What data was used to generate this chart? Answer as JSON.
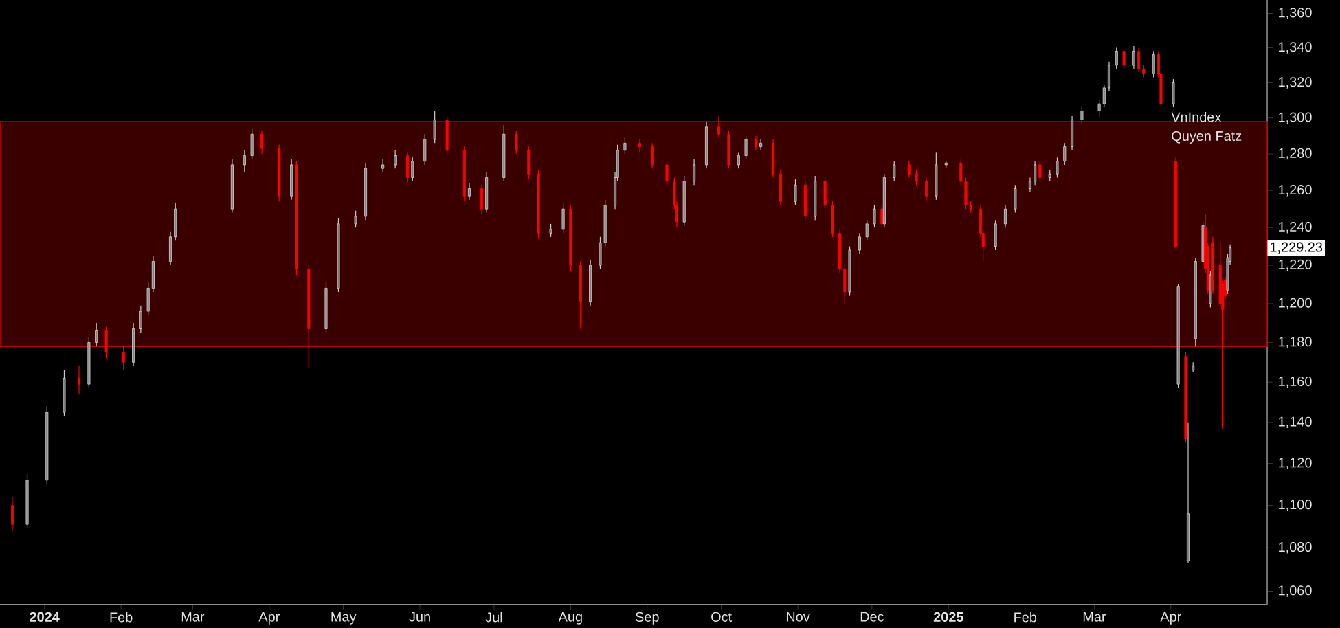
{
  "chart_data": {
    "type": "candlestick",
    "annotations": [
      "VnIndex",
      "Quyen Fatz",
      "1,229.23"
    ],
    "log": "y",
    "xlim": [
      "2023-12-14",
      "2025-05-10"
    ],
    "ylim": [
      1054,
      1368
    ],
    "xticks": [
      {
        "value": "2024-01-01",
        "label": "2024"
      },
      {
        "value": "2024-02-01",
        "label": "Feb"
      },
      {
        "value": "2024-03-01",
        "label": "Mar"
      },
      {
        "value": "2024-04-01",
        "label": "Apr"
      },
      {
        "value": "2024-05-01",
        "label": "May"
      },
      {
        "value": "2024-06-01",
        "label": "Jun"
      },
      {
        "value": "2024-07-01",
        "label": "Jul"
      },
      {
        "value": "2024-08-01",
        "label": "Aug"
      },
      {
        "value": "2024-09-01",
        "label": "Sep"
      },
      {
        "value": "2024-10-01",
        "label": "Oct"
      },
      {
        "value": "2024-11-01",
        "label": "Nov"
      },
      {
        "value": "2024-12-01",
        "label": "Dec"
      },
      {
        "value": "2025-01-01",
        "label": "2025"
      },
      {
        "value": "2025-02-01",
        "label": "Feb"
      },
      {
        "value": "2025-03-01",
        "label": "Mar"
      },
      {
        "value": "2025-04-01",
        "label": "Apr"
      }
    ],
    "yticks": [
      {
        "value": 1060,
        "label": "1,060"
      },
      {
        "value": 1080,
        "label": "1,080"
      },
      {
        "value": 1100,
        "label": "1,100"
      },
      {
        "value": 1120,
        "label": "1,120"
      },
      {
        "value": 1140,
        "label": "1,140"
      },
      {
        "value": 1160,
        "label": "1,160"
      },
      {
        "value": 1180,
        "label": "1,180"
      },
      {
        "value": 1200,
        "label": "1,200"
      },
      {
        "value": 1220,
        "label": "1,220"
      },
      {
        "value": 1240,
        "label": "1,240"
      },
      {
        "value": 1260,
        "label": "1,260"
      },
      {
        "value": 1280,
        "label": "1,280"
      },
      {
        "value": 1300,
        "label": "1,300"
      },
      {
        "value": 1320,
        "label": "1,320"
      },
      {
        "value": 1340,
        "label": "1,340"
      },
      {
        "value": 1360,
        "label": "1,360"
      }
    ],
    "bands": [
      {
        "axis": "y",
        "from": 1178,
        "to": 1298,
        "color": "#3a0000"
      }
    ],
    "x": [
      "2023-12-19",
      "2023-12-25",
      "2024-01-02",
      "2024-01-09",
      "2024-01-15",
      "2024-01-19",
      "2024-01-22",
      "2024-01-26",
      "2024-02-02",
      "2024-02-06",
      "2024-02-09",
      "2024-02-12",
      "2024-02-14",
      "2024-02-21",
      "2024-02-23",
      "2024-03-17",
      "2024-03-22",
      "2024-03-25",
      "2024-03-29",
      "2024-04-05",
      "2024-04-10",
      "2024-04-12",
      "2024-04-17",
      "2024-04-24",
      "2024-04-29",
      "2024-05-06",
      "2024-05-10",
      "2024-05-17",
      "2024-05-22",
      "2024-05-27",
      "2024-05-29",
      "2024-06-03",
      "2024-06-07",
      "2024-06-12",
      "2024-06-19",
      "2024-06-21",
      "2024-06-26",
      "2024-06-28",
      "2024-07-05",
      "2024-07-10",
      "2024-07-15",
      "2024-07-19",
      "2024-07-24",
      "2024-07-29",
      "2024-08-01",
      "2024-08-05",
      "2024-08-09",
      "2024-08-13",
      "2024-08-15",
      "2024-08-19",
      "2024-08-20",
      "2024-08-23",
      "2024-08-29",
      "2024-09-03",
      "2024-09-09",
      "2024-09-12",
      "2024-09-13",
      "2024-09-16",
      "2024-09-20",
      "2024-09-25",
      "2024-09-30",
      "2024-10-04",
      "2024-10-08",
      "2024-10-11",
      "2024-10-15",
      "2024-10-17",
      "2024-10-22",
      "2024-10-25",
      "2024-10-31",
      "2024-11-04",
      "2024-11-08",
      "2024-11-12",
      "2024-11-15",
      "2024-11-18",
      "2024-11-20",
      "2024-11-22",
      "2024-11-26",
      "2024-11-29",
      "2024-12-02",
      "2024-12-05",
      "2024-12-06",
      "2024-12-10",
      "2024-12-16",
      "2024-12-19",
      "2024-12-23",
      "2024-12-27",
      "2024-12-31",
      "2025-01-06",
      "2025-01-08",
      "2025-01-10",
      "2025-01-14",
      "2025-01-15",
      "2025-01-20",
      "2025-01-24",
      "2025-01-28",
      "2025-02-03",
      "2025-02-05",
      "2025-02-07",
      "2025-02-11",
      "2025-02-14",
      "2025-02-17",
      "2025-02-20",
      "2025-02-24",
      "2025-03-03",
      "2025-03-05",
      "2025-03-07",
      "2025-03-10",
      "2025-03-13",
      "2025-03-17",
      "2025-03-19",
      "2025-03-21",
      "2025-03-25",
      "2025-03-27",
      "2025-03-28",
      "2025-04-02",
      "2025-04-03",
      "2025-04-04",
      "2025-04-07",
      "2025-04-08",
      "2025-04-10",
      "2025-04-11",
      "2025-04-14",
      "2025-04-15",
      "2025-04-16",
      "2025-04-17",
      "2025-04-18",
      "2025-04-21",
      "2025-04-22",
      "2025-04-23",
      "2025-04-24",
      "2025-04-25"
    ],
    "ohlc": [
      [
        1100,
        1104,
        1088,
        1091
      ],
      [
        1091,
        1115,
        1089,
        1112
      ],
      [
        1112,
        1148,
        1110,
        1145
      ],
      [
        1145,
        1166,
        1143,
        1162
      ],
      [
        1162,
        1168,
        1154,
        1159
      ],
      [
        1159,
        1183,
        1157,
        1180
      ],
      [
        1180,
        1190,
        1178,
        1186
      ],
      [
        1186,
        1188,
        1172,
        1175
      ],
      [
        1175,
        1178,
        1166,
        1170
      ],
      [
        1170,
        1190,
        1168,
        1187
      ],
      [
        1187,
        1199,
        1185,
        1196
      ],
      [
        1196,
        1211,
        1194,
        1208
      ],
      [
        1208,
        1225,
        1206,
        1222
      ],
      [
        1222,
        1238,
        1220,
        1235
      ],
      [
        1235,
        1253,
        1233,
        1250
      ],
      [
        1250,
        1277,
        1248,
        1274
      ],
      [
        1274,
        1282,
        1270,
        1279
      ],
      [
        1279,
        1294,
        1277,
        1291
      ],
      [
        1291,
        1293,
        1280,
        1283
      ],
      [
        1283,
        1285,
        1254,
        1257
      ],
      [
        1257,
        1277,
        1255,
        1274
      ],
      [
        1274,
        1276,
        1215,
        1218
      ],
      [
        1218,
        1220,
        1167,
        1187
      ],
      [
        1187,
        1211,
        1185,
        1208
      ],
      [
        1208,
        1245,
        1206,
        1242
      ],
      [
        1242,
        1249,
        1240,
        1246
      ],
      [
        1246,
        1275,
        1244,
        1272
      ],
      [
        1272,
        1277,
        1270,
        1274
      ],
      [
        1274,
        1282,
        1272,
        1279
      ],
      [
        1279,
        1281,
        1264,
        1267
      ],
      [
        1267,
        1278,
        1265,
        1276
      ],
      [
        1276,
        1291,
        1274,
        1288
      ],
      [
        1288,
        1304,
        1286,
        1299
      ],
      [
        1299,
        1301,
        1279,
        1282
      ],
      [
        1282,
        1284,
        1254,
        1257
      ],
      [
        1257,
        1264,
        1255,
        1261
      ],
      [
        1261,
        1263,
        1247,
        1250
      ],
      [
        1250,
        1270,
        1248,
        1267
      ],
      [
        1267,
        1296,
        1265,
        1291
      ],
      [
        1291,
        1293,
        1280,
        1282
      ],
      [
        1282,
        1284,
        1266,
        1269
      ],
      [
        1269,
        1271,
        1234,
        1237
      ],
      [
        1237,
        1242,
        1235,
        1239
      ],
      [
        1239,
        1253,
        1237,
        1250
      ],
      [
        1250,
        1252,
        1217,
        1220
      ],
      [
        1220,
        1222,
        1187,
        1201
      ],
      [
        1201,
        1223,
        1199,
        1220
      ],
      [
        1220,
        1235,
        1218,
        1232
      ],
      [
        1232,
        1255,
        1230,
        1252
      ],
      [
        1252,
        1270,
        1250,
        1267
      ],
      [
        1267,
        1285,
        1265,
        1282
      ],
      [
        1282,
        1289,
        1280,
        1286
      ],
      [
        1286,
        1288,
        1281,
        1284
      ],
      [
        1284,
        1286,
        1272,
        1274
      ],
      [
        1274,
        1276,
        1262,
        1265
      ],
      [
        1265,
        1267,
        1250,
        1252
      ],
      [
        1252,
        1254,
        1240,
        1243
      ],
      [
        1243,
        1268,
        1241,
        1265
      ],
      [
        1265,
        1277,
        1263,
        1274
      ],
      [
        1274,
        1298,
        1272,
        1295
      ],
      [
        1295,
        1301,
        1289,
        1291
      ],
      [
        1291,
        1293,
        1272,
        1274
      ],
      [
        1274,
        1281,
        1272,
        1279
      ],
      [
        1279,
        1290,
        1277,
        1288
      ],
      [
        1288,
        1290,
        1282,
        1284
      ],
      [
        1284,
        1288,
        1282,
        1286
      ],
      [
        1286,
        1288,
        1267,
        1269
      ],
      [
        1269,
        1271,
        1252,
        1254
      ],
      [
        1254,
        1266,
        1252,
        1263
      ],
      [
        1263,
        1265,
        1244,
        1246
      ],
      [
        1246,
        1268,
        1244,
        1265
      ],
      [
        1265,
        1267,
        1250,
        1252
      ],
      [
        1252,
        1254,
        1235,
        1237
      ],
      [
        1237,
        1239,
        1216,
        1218
      ],
      [
        1218,
        1220,
        1200,
        1206
      ],
      [
        1206,
        1230,
        1204,
        1228
      ],
      [
        1228,
        1237,
        1226,
        1235
      ],
      [
        1235,
        1244,
        1233,
        1242
      ],
      [
        1242,
        1252,
        1240,
        1250
      ],
      [
        1250,
        1252,
        1240,
        1242
      ],
      [
        1242,
        1269,
        1240,
        1267
      ],
      [
        1267,
        1276,
        1265,
        1274
      ],
      [
        1274,
        1276,
        1267,
        1269
      ],
      [
        1269,
        1271,
        1263,
        1265
      ],
      [
        1265,
        1267,
        1255,
        1257
      ],
      [
        1257,
        1281,
        1255,
        1274
      ],
      [
        1274,
        1276,
        1272,
        1275
      ],
      [
        1275,
        1277,
        1263,
        1265
      ],
      [
        1265,
        1267,
        1250,
        1252
      ],
      [
        1252,
        1254,
        1248,
        1250
      ],
      [
        1250,
        1252,
        1235,
        1237
      ],
      [
        1237,
        1239,
        1222,
        1230
      ],
      [
        1230,
        1244,
        1228,
        1242
      ],
      [
        1242,
        1252,
        1240,
        1250
      ],
      [
        1250,
        1263,
        1248,
        1261
      ],
      [
        1261,
        1267,
        1259,
        1265
      ],
      [
        1265,
        1276,
        1263,
        1274
      ],
      [
        1274,
        1276,
        1265,
        1267
      ],
      [
        1267,
        1271,
        1265,
        1269
      ],
      [
        1269,
        1278,
        1267,
        1276
      ],
      [
        1276,
        1286,
        1274,
        1284
      ],
      [
        1284,
        1301,
        1282,
        1299
      ],
      [
        1299,
        1306,
        1297,
        1304
      ],
      [
        1304,
        1310,
        1300,
        1308
      ],
      [
        1308,
        1319,
        1306,
        1317
      ],
      [
        1317,
        1332,
        1315,
        1330
      ],
      [
        1330,
        1340,
        1328,
        1338
      ],
      [
        1338,
        1340,
        1328,
        1330
      ],
      [
        1330,
        1341,
        1328,
        1338
      ],
      [
        1338,
        1340,
        1326,
        1328
      ],
      [
        1328,
        1330,
        1323,
        1325
      ],
      [
        1325,
        1338,
        1323,
        1336
      ],
      [
        1336,
        1338,
        1323,
        1325
      ],
      [
        1325,
        1327,
        1305,
        1308
      ],
      [
        1308,
        1322,
        1306,
        1320
      ],
      [
        1276,
        1278,
        1229,
        1230
      ],
      [
        1159,
        1210,
        1157,
        1209
      ],
      [
        1173,
        1175,
        1130,
        1132
      ],
      [
        1074,
        1140,
        1073,
        1096
      ],
      [
        1166,
        1170,
        1165,
        1168
      ],
      [
        1182,
        1224,
        1178,
        1222
      ],
      [
        1222,
        1243,
        1220,
        1241
      ],
      [
        1240,
        1247,
        1216,
        1218
      ],
      [
        1230,
        1232,
        1205,
        1207
      ],
      [
        1200,
        1217,
        1198,
        1215
      ],
      [
        1232,
        1235,
        1205,
        1207
      ],
      [
        1220,
        1232,
        1198,
        1200
      ],
      [
        1210,
        1212,
        1137,
        1197
      ],
      [
        1212,
        1214,
        1202,
        1204
      ],
      [
        1207,
        1226,
        1205,
        1224
      ],
      [
        1222,
        1231,
        1220,
        1229.23
      ]
    ]
  }
}
